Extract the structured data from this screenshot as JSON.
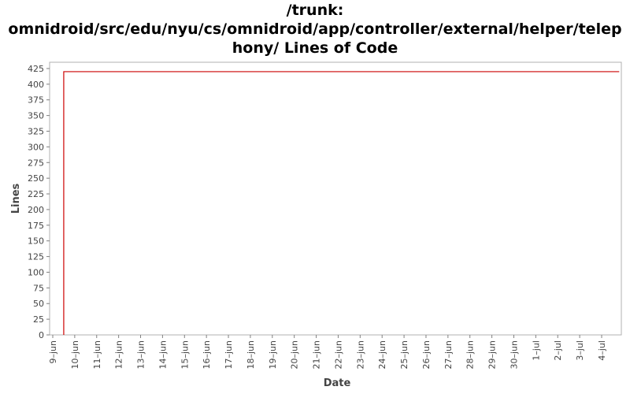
{
  "chart_data": {
    "type": "line",
    "title_lines": [
      "/trunk:",
      "omnidroid/src/edu/nyu/cs/omnidroid/app/controller/external/helper/telep",
      "hony/ Lines of Code"
    ],
    "xlabel": "Date",
    "ylabel": "Lines",
    "ylim": [
      0,
      435
    ],
    "yticks": [
      0,
      25,
      50,
      75,
      100,
      125,
      150,
      175,
      200,
      225,
      250,
      275,
      300,
      325,
      350,
      375,
      400,
      425
    ],
    "xlim": [
      0,
      26
    ],
    "xticks": [
      {
        "x": 0,
        "label": "9–jun"
      },
      {
        "x": 1,
        "label": "10–jun"
      },
      {
        "x": 2,
        "label": "11–jun"
      },
      {
        "x": 3,
        "label": "12–jun"
      },
      {
        "x": 4,
        "label": "13–jun"
      },
      {
        "x": 5,
        "label": "14–jun"
      },
      {
        "x": 6,
        "label": "15–jun"
      },
      {
        "x": 7,
        "label": "16–jun"
      },
      {
        "x": 8,
        "label": "17–jun"
      },
      {
        "x": 9,
        "label": "18–jun"
      },
      {
        "x": 10,
        "label": "19–jun"
      },
      {
        "x": 11,
        "label": "20–jun"
      },
      {
        "x": 12,
        "label": "21–jun"
      },
      {
        "x": 13,
        "label": "22–jun"
      },
      {
        "x": 14,
        "label": "23–jun"
      },
      {
        "x": 15,
        "label": "24–jun"
      },
      {
        "x": 16,
        "label": "25–jun"
      },
      {
        "x": 17,
        "label": "26–jun"
      },
      {
        "x": 18,
        "label": "27–jun"
      },
      {
        "x": 19,
        "label": "28–jun"
      },
      {
        "x": 20,
        "label": "29–jun"
      },
      {
        "x": 21,
        "label": "30–jun"
      },
      {
        "x": 22,
        "label": "1–jul"
      },
      {
        "x": 23,
        "label": "2–jul"
      },
      {
        "x": 24,
        "label": "3–jul"
      },
      {
        "x": 25,
        "label": "4–jul"
      }
    ],
    "series": [
      {
        "color": "#cc0000",
        "step": true,
        "points": [
          {
            "x": 0.5,
            "y": 0
          },
          {
            "x": 0.5,
            "y": 420
          },
          {
            "x": 25.8,
            "y": 420
          }
        ]
      }
    ],
    "grid": false,
    "colors": {
      "axis": "#808080",
      "text": "#444444",
      "title": "#000000"
    }
  }
}
